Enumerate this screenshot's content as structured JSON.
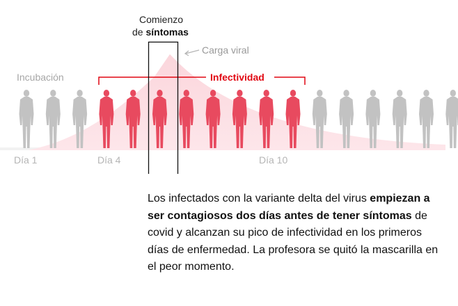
{
  "labels": {
    "onset_line1": "Comienzo",
    "onset_line2_prefix": "de ",
    "onset_line2_bold": "síntomas",
    "viral_load": "Carga viral",
    "incubation": "Incubación",
    "infectivity": "Infectividad",
    "day1": "Día 1",
    "day4": "Día 4",
    "day10": "Día 10"
  },
  "figures": {
    "count": 17,
    "colors": [
      "gray",
      "gray",
      "gray",
      "red",
      "red",
      "red",
      "red",
      "red",
      "red",
      "red",
      "red",
      "gray",
      "gray",
      "gray",
      "gray",
      "gray",
      "gray"
    ]
  },
  "colors": {
    "gray_figure": "#c2c2c2",
    "red_figure": "#e84a5f",
    "viral_load_fill": "#fbdfe3",
    "infectivity_red": "#e10712",
    "incubation_gray": "#a6a6a6"
  },
  "caption": {
    "part1": "Los infectados con la variante delta del virus ",
    "bold": "empiezan a ser contagiosos dos días antes de tener síntomas",
    "part2": " de covid y alcanzan su pico de infectividad en los primeros días de enfermedad. La profesora se quitó la mascarilla en el peor momento."
  }
}
